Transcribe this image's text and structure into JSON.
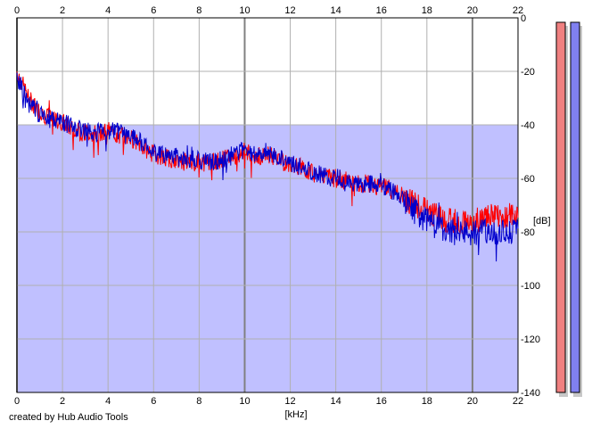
{
  "chart_data": {
    "type": "line",
    "xlabel": "[kHz]",
    "ylabel": "[dB]",
    "xlim": [
      0,
      22
    ],
    "ylim": [
      -140,
      0
    ],
    "x_ticks": [
      0,
      2,
      4,
      6,
      8,
      10,
      12,
      14,
      16,
      18,
      20,
      22
    ],
    "x_tick_labels": [
      "0",
      "2",
      "4",
      "6",
      "8",
      "10",
      "12",
      "14",
      "16",
      "18",
      "20",
      "22"
    ],
    "y_ticks": [
      0,
      -20,
      -40,
      -60,
      -80,
      -100,
      -120,
      -140
    ],
    "y_tick_labels": [
      "0",
      "-20",
      "-40",
      "-60",
      "-80",
      "-100",
      "-120",
      "-140"
    ],
    "grid": true,
    "fill_level_db": -40,
    "colors": {
      "red_series": "#ff0000",
      "blue_series": "#0000cc",
      "fill": "#c0c0ff",
      "grid": "#b0b0b0",
      "major_grid": "#808080",
      "meter_left": "#f08080",
      "meter_right": "#8080f0"
    },
    "series": [
      {
        "color": "#ff0000",
        "x": [
          0,
          0.5,
          1,
          1.5,
          2,
          2.5,
          3,
          3.5,
          4,
          4.5,
          5,
          5.5,
          6,
          6.5,
          7,
          7.5,
          8,
          8.5,
          9,
          9.5,
          10,
          10.5,
          11,
          11.5,
          12,
          12.5,
          13,
          13.5,
          14,
          14.5,
          15,
          15.5,
          16,
          16.5,
          17,
          17.5,
          18,
          18.5,
          19,
          19.5,
          20,
          20.5,
          21,
          21.5,
          22
        ],
        "y": [
          -20,
          -30,
          -35,
          -38,
          -39,
          -42,
          -43,
          -43,
          -42,
          -44,
          -45,
          -48,
          -51,
          -52,
          -53,
          -54,
          -54,
          -54,
          -53,
          -52,
          -50,
          -52,
          -51,
          -53,
          -55,
          -56,
          -58,
          -59,
          -60,
          -61,
          -62,
          -62,
          -63,
          -65,
          -67,
          -70,
          -72,
          -74,
          -76,
          -76,
          -76,
          -75,
          -74,
          -74,
          -74
        ]
      },
      {
        "color": "#0000cc",
        "x": [
          0,
          0.5,
          1,
          1.5,
          2,
          2.5,
          3,
          3.5,
          4,
          4.5,
          5,
          5.5,
          6,
          6.5,
          7,
          7.5,
          8,
          8.5,
          9,
          9.5,
          10,
          10.5,
          11,
          11.5,
          12,
          12.5,
          13,
          13.5,
          14,
          14.5,
          15,
          15.5,
          16,
          16.5,
          17,
          17.5,
          18,
          18.5,
          19,
          19.5,
          20,
          20.5,
          21,
          21.5,
          22
        ],
        "y": [
          -22,
          -32,
          -36,
          -38,
          -39,
          -41,
          -42,
          -43,
          -42,
          -43,
          -44,
          -47,
          -50,
          -51,
          -52,
          -53,
          -53,
          -54,
          -53,
          -51,
          -49,
          -51,
          -50,
          -52,
          -54,
          -56,
          -58,
          -59,
          -59,
          -61,
          -62,
          -62,
          -63,
          -65,
          -68,
          -72,
          -76,
          -78,
          -80,
          -80,
          -81,
          -80,
          -80,
          -80,
          -80
        ]
      }
    ],
    "level_meters": [
      {
        "color": "#f08080",
        "level_db": 0
      },
      {
        "color": "#8080f0",
        "level_db": 0
      }
    ]
  },
  "credit": "created by Hub Audio Tools"
}
